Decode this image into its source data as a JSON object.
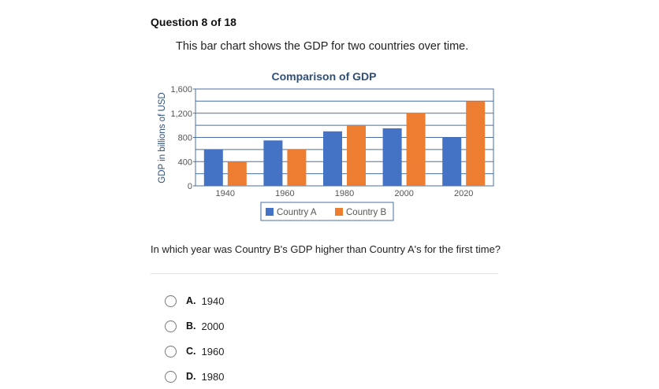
{
  "question": {
    "header": "Question 8 of 18",
    "intro": "This bar chart shows the GDP for two countries over time."
  },
  "chart_data": {
    "type": "bar",
    "title": "Comparison of GDP",
    "xlabel": "",
    "ylabel": "GDP in billions of USD",
    "categories": [
      "1940",
      "1960",
      "1980",
      "2000",
      "2020"
    ],
    "y_ticks": [
      "0",
      "400",
      "800",
      "1,200",
      "1,600"
    ],
    "ylim": [
      0,
      1600
    ],
    "grid": true,
    "legend_position": "bottom",
    "series": [
      {
        "name": "Country A",
        "color": "#4472c4",
        "values": [
          600,
          750,
          900,
          950,
          800
        ]
      },
      {
        "name": "Country B",
        "color": "#ed7d31",
        "values": [
          400,
          600,
          1000,
          1200,
          1400
        ]
      }
    ]
  },
  "prompt": "In which year was Country B's GDP higher than Country A's for the first time?",
  "choices": [
    {
      "letter": "A.",
      "text": "1940"
    },
    {
      "letter": "B.",
      "text": "2000"
    },
    {
      "letter": "C.",
      "text": "1960"
    },
    {
      "letter": "D.",
      "text": "1980"
    }
  ]
}
